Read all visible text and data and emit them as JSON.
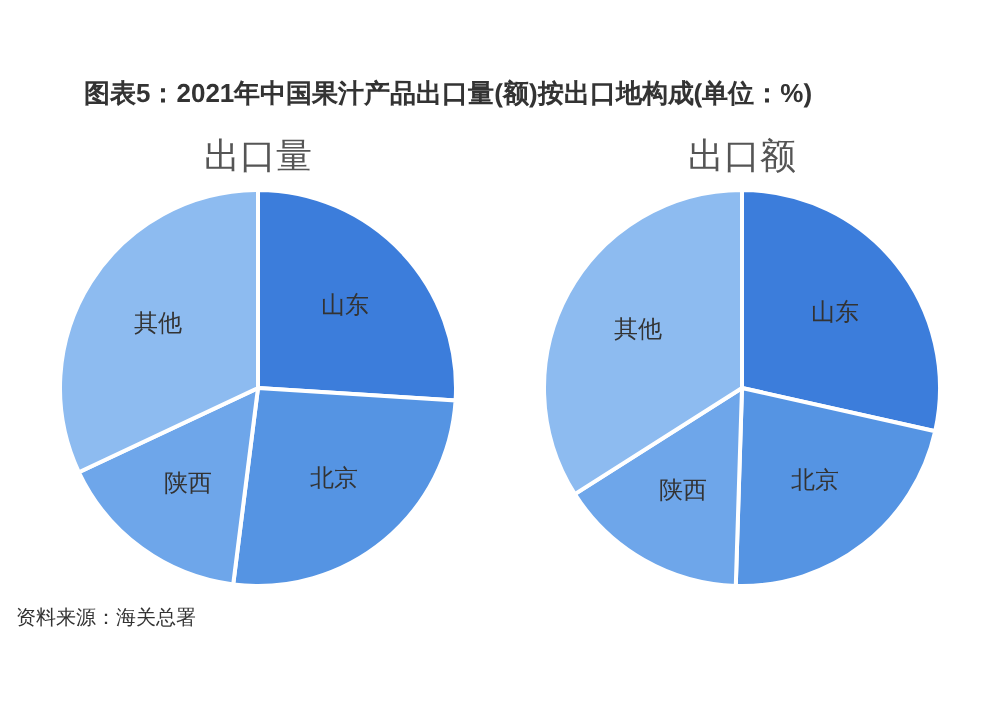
{
  "chart_data": [
    {
      "type": "pie",
      "title": "图表5：2021年中国果汁产品出口量(额)按出口地构成(单位：%)",
      "subtitle": "出口量",
      "categories": [
        "山东",
        "北京",
        "陕西",
        "其他"
      ],
      "values": [
        26,
        26,
        16,
        32
      ],
      "colors": [
        "#3c7ddb",
        "#5594e3",
        "#6ea6ea",
        "#8dbbf0"
      ],
      "legend": false,
      "annotations": [
        "资料来源：海关总署"
      ]
    },
    {
      "type": "pie",
      "subtitle": "出口额",
      "categories": [
        "山东",
        "北京",
        "陕西",
        "其他"
      ],
      "values": [
        28.5,
        22,
        15.5,
        34
      ],
      "colors": [
        "#3c7ddb",
        "#5594e3",
        "#6ea6ea",
        "#8dbbf0"
      ],
      "legend": false
    }
  ]
}
